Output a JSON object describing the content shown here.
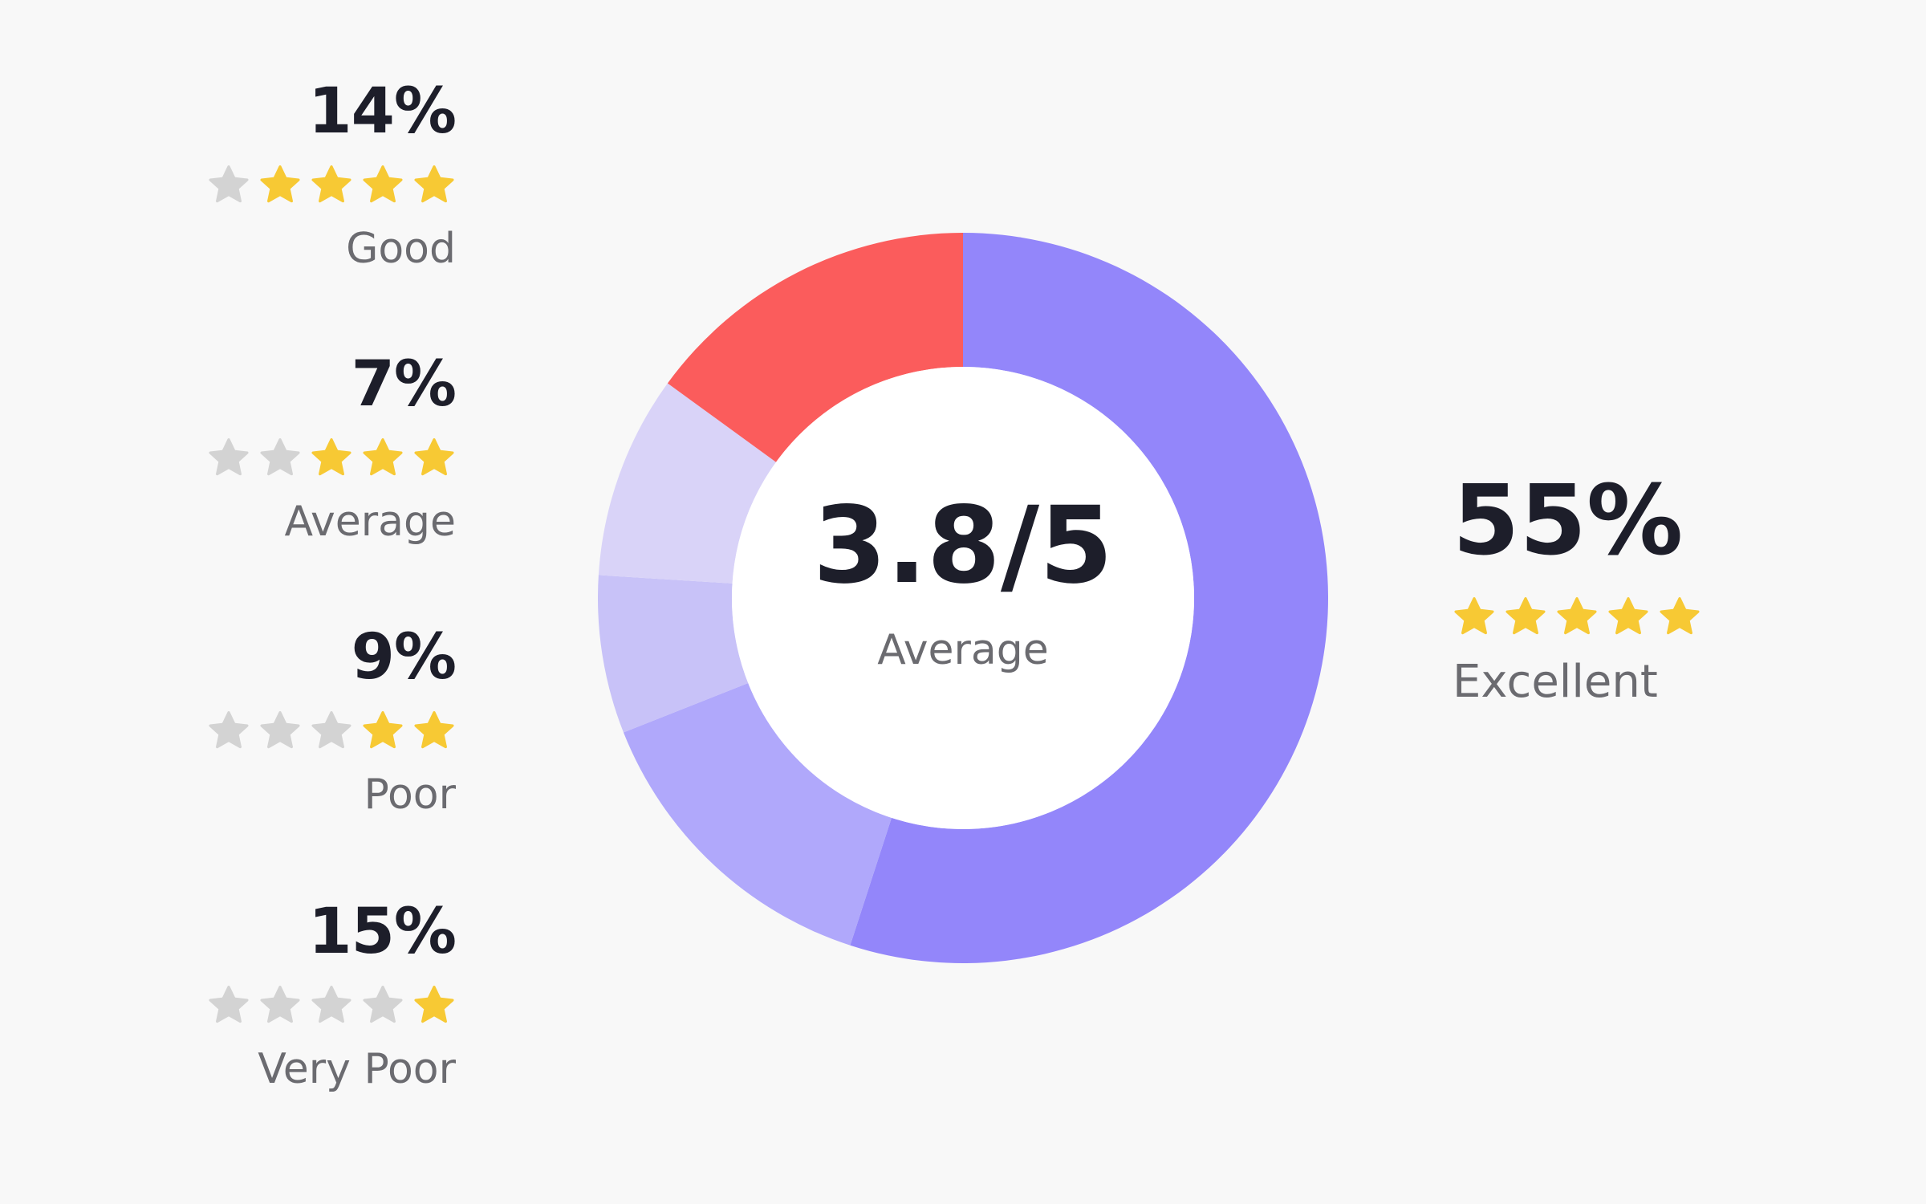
{
  "chart_data": {
    "type": "donut",
    "center": {
      "value": "3.8/5",
      "label": "Average"
    },
    "slices": [
      {
        "label": "Excellent",
        "percent_text": "55%",
        "value": 55,
        "stars": 5,
        "color": "#9386fa"
      },
      {
        "label": "Good",
        "percent_text": "14%",
        "value": 14,
        "stars": 4,
        "color": "#b0a8fb"
      },
      {
        "label": "Average",
        "percent_text": "7%",
        "value": 7,
        "stars": 3,
        "color": "#c8c2f8"
      },
      {
        "label": "Poor",
        "percent_text": "9%",
        "value": 9,
        "stars": 2,
        "color": "#d9d3f8"
      },
      {
        "label": "Very Poor",
        "percent_text": "15%",
        "value": 15,
        "stars": 1,
        "color": "#fb5c5c"
      }
    ]
  },
  "colors": {
    "star_filled": "#f7c934",
    "star_empty": "#d3d3d3"
  }
}
